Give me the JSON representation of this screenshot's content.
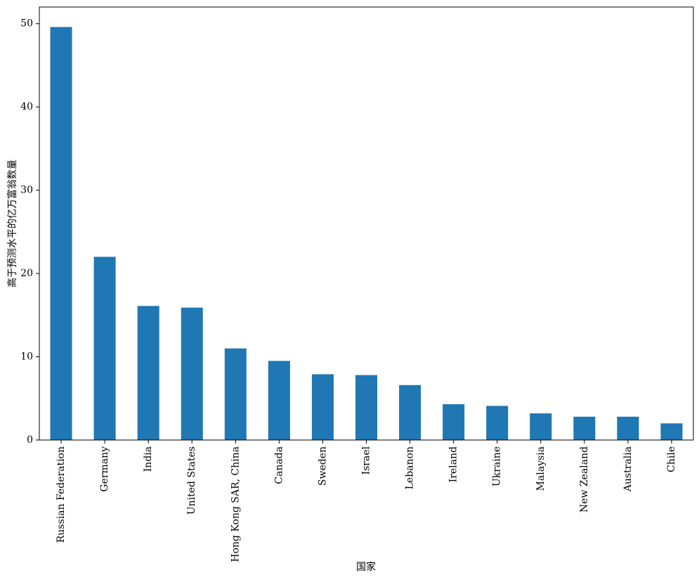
{
  "chart_data": {
    "type": "bar",
    "x_label": "国家",
    "y_label": "高于预测水平的亿万富翁数量",
    "categories": [
      "Russian Federation",
      "Germany",
      "India",
      "United States",
      "Hong Kong SAR, China",
      "Canada",
      "Sweden",
      "Israel",
      "Lebanon",
      "Ireland",
      "Ukraine",
      "Malaysia",
      "New Zealand",
      "Australia",
      "Chile"
    ],
    "values": [
      49.6,
      22.0,
      16.1,
      15.9,
      11.0,
      9.5,
      7.9,
      7.8,
      6.6,
      4.3,
      4.1,
      3.2,
      2.8,
      2.8,
      2.0
    ],
    "color": "#1f77b4",
    "ylim": [
      0,
      52
    ],
    "yticks": [
      0,
      10,
      20,
      30,
      40,
      50
    ],
    "grid": false
  }
}
